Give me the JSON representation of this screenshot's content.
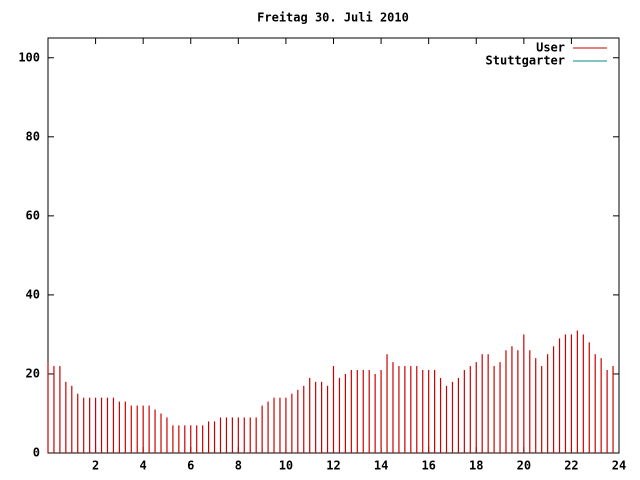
{
  "chart_data": {
    "type": "impulse",
    "title": "Freitag 30. Juli 2010",
    "x": [
      0,
      0.25,
      0.5,
      0.75,
      1,
      1.25,
      1.5,
      1.75,
      2,
      2.25,
      2.5,
      2.75,
      3,
      3.25,
      3.5,
      3.75,
      4,
      4.25,
      4.5,
      4.75,
      5,
      5.25,
      5.5,
      5.75,
      6,
      6.25,
      6.5,
      6.75,
      7,
      7.25,
      7.5,
      7.75,
      8,
      8.25,
      8.5,
      8.75,
      9,
      9.25,
      9.5,
      9.75,
      10,
      10.25,
      10.5,
      10.75,
      11,
      11.25,
      11.5,
      11.75,
      12,
      12.25,
      12.5,
      12.75,
      13,
      13.25,
      13.5,
      13.75,
      14,
      14.25,
      14.5,
      14.75,
      15,
      15.25,
      15.5,
      15.75,
      16,
      16.25,
      16.5,
      16.75,
      17,
      17.25,
      17.5,
      17.75,
      18,
      18.25,
      18.5,
      18.75,
      19,
      19.25,
      19.5,
      19.75,
      20,
      20.25,
      20.5,
      20.75,
      21,
      21.25,
      21.5,
      21.75,
      22,
      22.25,
      22.5,
      22.75,
      23,
      23.25,
      23.5,
      23.75
    ],
    "series": [
      {
        "name": "User",
        "color": "#cc0000",
        "values": [
          23,
          22,
          22,
          18,
          17,
          15,
          14,
          14,
          14,
          14,
          14,
          14,
          13,
          13,
          12,
          12,
          12,
          12,
          11,
          10,
          9,
          7,
          7,
          7,
          7,
          7,
          7,
          8,
          8,
          9,
          9,
          9,
          9,
          9,
          9,
          9,
          12,
          13,
          14,
          14,
          14,
          15,
          16,
          17,
          19,
          18,
          18,
          17,
          22,
          19,
          20,
          21,
          21,
          21,
          21,
          20,
          21,
          25,
          23,
          22,
          22,
          22,
          22,
          21,
          21,
          21,
          19,
          17,
          18,
          19,
          21,
          22,
          23,
          25,
          25,
          22,
          23,
          26,
          27,
          26,
          30,
          26,
          24,
          22,
          25,
          27,
          29,
          30,
          30,
          31,
          30,
          28,
          25,
          24,
          21,
          22
        ]
      },
      {
        "name": "Stuttgarter",
        "color": "#008b8b",
        "values": [
          null,
          null,
          null,
          null,
          null,
          null,
          null,
          null,
          null,
          null,
          null,
          null,
          null,
          null,
          null,
          null,
          null,
          null,
          null,
          null,
          null,
          null,
          null,
          null,
          null,
          null,
          null,
          null,
          null,
          null,
          null,
          null,
          null,
          null,
          null,
          null,
          null,
          null,
          null,
          null,
          null,
          null,
          null,
          null,
          null,
          null,
          null,
          null,
          null,
          null,
          null,
          null,
          null,
          null,
          null,
          null,
          null,
          null,
          null,
          null,
          null,
          null,
          null,
          null,
          null,
          null,
          null,
          null,
          null,
          null,
          null,
          null,
          null,
          null,
          null,
          null,
          null,
          null,
          null,
          null,
          null,
          null,
          null,
          null,
          null,
          null,
          null,
          null,
          null,
          null,
          null,
          null,
          null,
          null,
          null,
          null
        ]
      }
    ],
    "xlim": [
      0,
      24
    ],
    "xticks": [
      2,
      4,
      6,
      8,
      10,
      12,
      14,
      16,
      18,
      20,
      22,
      24
    ],
    "ylim": [
      0,
      105
    ],
    "yticks": [
      0,
      20,
      40,
      60,
      80,
      100
    ]
  }
}
